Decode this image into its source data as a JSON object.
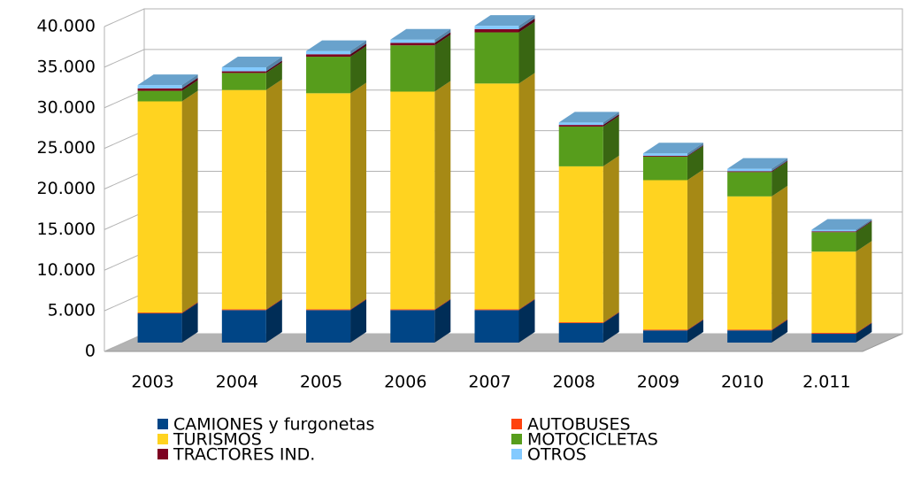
{
  "chart_data": {
    "type": "bar",
    "stacked": true,
    "categories": [
      "2003",
      "2004",
      "2005",
      "2006",
      "2007",
      "2008",
      "2009",
      "2010",
      "2.011"
    ],
    "series": [
      {
        "name": "CAMIONES y furgonetas",
        "color": "#004586",
        "values": [
          3600,
          4000,
          4000,
          4000,
          4000,
          2400,
          1500,
          1500,
          1100
        ]
      },
      {
        "name": "AUTOBUSES",
        "color": "#ff420e",
        "values": [
          100,
          100,
          100,
          100,
          100,
          100,
          100,
          100,
          100
        ]
      },
      {
        "name": "TURISMOS",
        "color": "#ffd320",
        "values": [
          26000,
          27000,
          26600,
          26800,
          27800,
          19200,
          18400,
          16400,
          10000
        ]
      },
      {
        "name": "MOTOCICLETAS",
        "color": "#579d1c",
        "values": [
          1300,
          2100,
          4500,
          5700,
          6300,
          4900,
          2900,
          3000,
          2400
        ]
      },
      {
        "name": "TRACTORES IND.",
        "color": "#7e0021",
        "values": [
          300,
          200,
          300,
          300,
          400,
          200,
          100,
          100,
          100
        ]
      },
      {
        "name": "OTROS",
        "color": "#83caff",
        "values": [
          400,
          500,
          400,
          400,
          400,
          300,
          300,
          300,
          200
        ]
      }
    ],
    "ylim": [
      0,
      40000
    ],
    "yticks": [
      0,
      {
        "value": 5000,
        "label": "5.000"
      },
      {
        "value": 10000,
        "label": "10.000"
      },
      {
        "value": 15000,
        "label": "15.000"
      },
      {
        "value": 20000,
        "label": "20.000"
      },
      {
        "value": 25000,
        "label": "25.000"
      },
      {
        "value": 30000,
        "label": "30.000"
      },
      {
        "value": 35000,
        "label": "35.000"
      },
      {
        "value": 40000,
        "label": "40.000"
      }
    ],
    "grid": true,
    "legend": "bottom"
  }
}
